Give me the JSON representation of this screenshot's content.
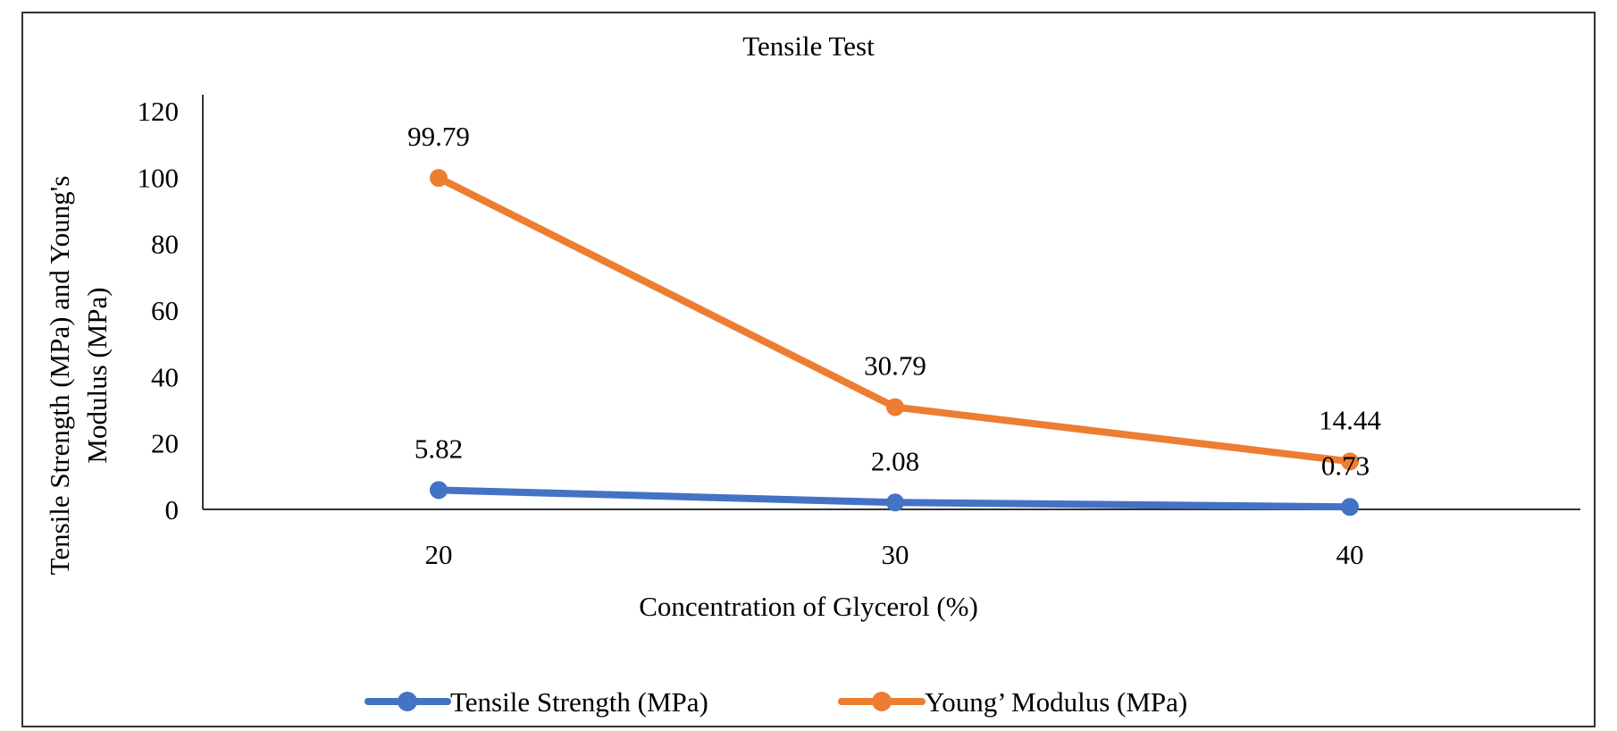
{
  "chart_data": {
    "type": "line",
    "title": "Tensile Test",
    "xlabel": "Concentration of Glycerol (%)",
    "ylabel": [
      "Tensile Strength (MPa) and Young's",
      "Modulus (MPa)"
    ],
    "categories": [
      "20",
      "30",
      "40"
    ],
    "ylim": [
      0,
      120
    ],
    "yticks": [
      "0",
      "20",
      "40",
      "60",
      "80",
      "100",
      "120"
    ],
    "grid": false,
    "legend": "bottom",
    "series": [
      {
        "name": "Tensile Strength (MPa)",
        "values": [
          5.82,
          2.08,
          0.73
        ],
        "labels": [
          "5.82",
          "2.08",
          "0.73"
        ],
        "color": "#4472C4"
      },
      {
        "name": "Young’ Modulus (MPa)",
        "values": [
          99.79,
          30.79,
          14.44
        ],
        "labels": [
          "99.79",
          "30.79",
          "14.44"
        ],
        "color": "#ED7D31"
      }
    ]
  }
}
